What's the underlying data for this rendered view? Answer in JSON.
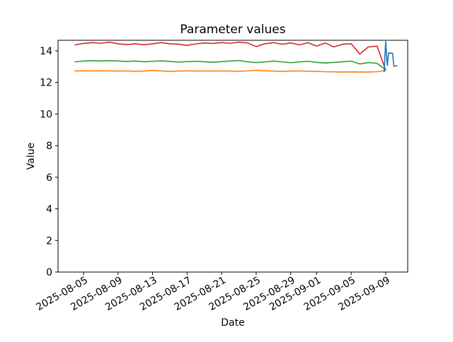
{
  "figure": {
    "background": "#ffffff",
    "spine_color": "#000000",
    "text_color": "#000000"
  },
  "chart_data": {
    "type": "line",
    "title": "Parameter values",
    "xlabel": "Date",
    "ylabel": "Value",
    "grid": false,
    "legend": null,
    "x_unit": "days since 2025-08-04",
    "xlim": [
      -1.95,
      38.55
    ],
    "ylim": [
      0,
      14.67
    ],
    "yticks": [
      0,
      2,
      4,
      6,
      8,
      10,
      12,
      14
    ],
    "xticks": [
      {
        "offset": 1,
        "label": "2025-08-05"
      },
      {
        "offset": 5,
        "label": "2025-08-09"
      },
      {
        "offset": 9,
        "label": "2025-08-13"
      },
      {
        "offset": 13,
        "label": "2025-08-17"
      },
      {
        "offset": 17,
        "label": "2025-08-21"
      },
      {
        "offset": 21,
        "label": "2025-08-25"
      },
      {
        "offset": 25,
        "label": "2025-08-29"
      },
      {
        "offset": 28,
        "label": "2025-09-01"
      },
      {
        "offset": 32,
        "label": "2025-09-05"
      },
      {
        "offset": 36,
        "label": "2025-09-09"
      }
    ],
    "x_tick_rotation_deg": 30,
    "series": [
      {
        "name": "series-red",
        "color": "#d62728",
        "x": [
          0,
          1,
          2,
          3,
          4,
          5,
          6,
          7,
          8,
          9,
          10,
          11,
          12,
          13,
          14,
          15,
          16,
          17,
          18,
          19,
          20,
          21,
          22,
          23,
          24,
          25,
          26,
          27,
          28,
          29,
          30,
          31,
          32,
          33,
          34,
          35,
          36
        ],
        "y": [
          14.38,
          14.47,
          14.52,
          14.48,
          14.55,
          14.45,
          14.4,
          14.45,
          14.38,
          14.45,
          14.52,
          14.45,
          14.42,
          14.35,
          14.44,
          14.5,
          14.47,
          14.52,
          14.48,
          14.55,
          14.5,
          14.27,
          14.45,
          14.52,
          14.42,
          14.5,
          14.38,
          14.52,
          14.3,
          14.5,
          14.25,
          14.42,
          14.45,
          13.8,
          14.25,
          14.3,
          12.78
        ]
      },
      {
        "name": "series-green",
        "color": "#2ca02c",
        "x": [
          0,
          1,
          2,
          3,
          4,
          5,
          6,
          7,
          8,
          9,
          10,
          11,
          12,
          13,
          14,
          15,
          16,
          17,
          18,
          19,
          20,
          21,
          22,
          23,
          24,
          25,
          26,
          27,
          28,
          29,
          30,
          31,
          32,
          33,
          34,
          35,
          36
        ],
        "y": [
          13.3,
          13.36,
          13.38,
          13.36,
          13.38,
          13.36,
          13.33,
          13.36,
          13.31,
          13.34,
          13.37,
          13.33,
          13.29,
          13.32,
          13.34,
          13.31,
          13.28,
          13.32,
          13.36,
          13.39,
          13.31,
          13.26,
          13.3,
          13.36,
          13.3,
          13.25,
          13.3,
          13.34,
          13.27,
          13.23,
          13.27,
          13.31,
          13.35,
          13.17,
          13.26,
          13.21,
          12.8
        ]
      },
      {
        "name": "series-orange",
        "color": "#ff7f0e",
        "x": [
          0,
          1,
          2,
          3,
          4,
          5,
          6,
          7,
          8,
          9,
          10,
          11,
          12,
          13,
          14,
          15,
          16,
          17,
          18,
          19,
          20,
          21,
          22,
          23,
          24,
          25,
          26,
          27,
          28,
          29,
          30,
          31,
          32,
          33,
          34,
          35,
          36
        ],
        "y": [
          12.73,
          12.74,
          12.73,
          12.74,
          12.73,
          12.72,
          12.73,
          12.71,
          12.72,
          12.76,
          12.73,
          12.7,
          12.72,
          12.74,
          12.72,
          12.73,
          12.72,
          12.73,
          12.72,
          12.71,
          12.73,
          12.77,
          12.74,
          12.72,
          12.7,
          12.72,
          12.73,
          12.71,
          12.7,
          12.68,
          12.67,
          12.66,
          12.67,
          12.66,
          12.66,
          12.68,
          12.76
        ]
      },
      {
        "name": "series-blue",
        "color": "#1f77b4",
        "x": [
          35.82,
          36.0,
          36.18,
          36.35,
          36.8,
          36.95,
          37.3
        ],
        "y": [
          12.68,
          14.6,
          13.08,
          13.88,
          13.84,
          13.02,
          13.06
        ]
      }
    ]
  }
}
